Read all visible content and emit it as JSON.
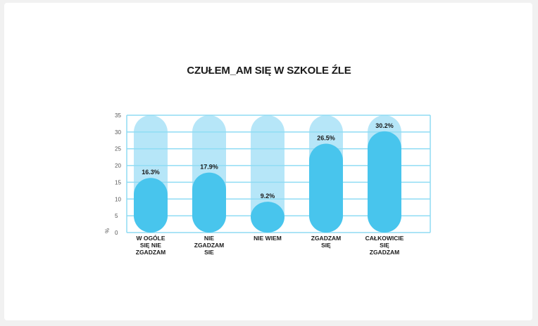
{
  "chart_data": {
    "type": "bar",
    "title": "CZUŁEM_AM SIĘ W SZKOLE ŹLE",
    "ylabel": "%",
    "ylim": [
      0,
      35
    ],
    "yticks": [
      0,
      5,
      10,
      15,
      20,
      25,
      30,
      35
    ],
    "categories": [
      [
        "W OGÓLE",
        "SIĘ NIE",
        "ZGADZAM"
      ],
      [
        "NIE",
        "ZGADZAM",
        "SIE"
      ],
      [
        "NIE WIEM"
      ],
      [
        "ZGADZAM",
        "SIĘ"
      ],
      [
        "CAŁKOWICIE",
        "SIĘ",
        "ZGADZAM"
      ]
    ],
    "values": [
      16.3,
      17.9,
      9.2,
      26.5,
      30.2
    ],
    "value_labels": [
      "16.3%",
      "17.9%",
      "9.2%",
      "26.5%",
      "30.2%"
    ],
    "grid": true,
    "colors": {
      "bar": "#48c5ed",
      "track": "#b6e6f8",
      "grid": "#8fdcf4"
    }
  }
}
